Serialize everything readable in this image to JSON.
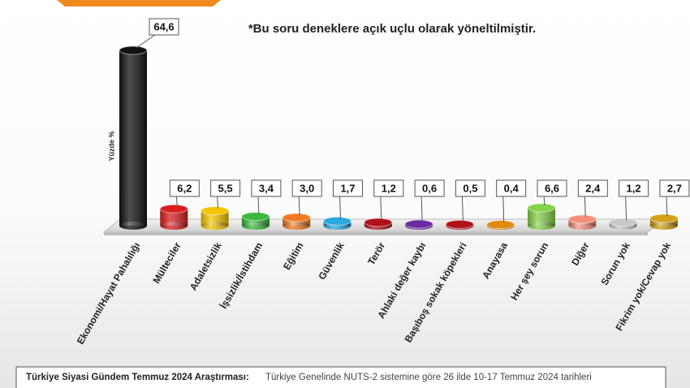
{
  "chart_data": {
    "type": "bar",
    "note": "*Bu soru deneklere açık uçlu olarak yöneltilmiştir.",
    "y_label": "Yüzde %",
    "categories": [
      "Ekonomi/Hayat Pahalılığı",
      "Mülteciler",
      "Adaletsizlik",
      "İşsizlik/İstihdam",
      "Eğitim",
      "Güvenlik",
      "Terör",
      "Ahlaki değer kaybı",
      "Başıboş sokak köpekleri",
      "Anayasa",
      "Her şey sorun",
      "Diğer",
      "Sorun yok",
      "Fikrim yok/Cevap yok"
    ],
    "values": [
      64.6,
      6.2,
      5.5,
      3.4,
      3.0,
      1.7,
      1.2,
      0.6,
      0.5,
      0.4,
      6.6,
      2.4,
      1.2,
      2.7
    ],
    "value_labels": [
      "64,6",
      "6,2",
      "5,5",
      "3,4",
      "3,0",
      "1,7",
      "1,2",
      "0,6",
      "0,5",
      "0,4",
      "6,6",
      "2,4",
      "1,2",
      "2,7"
    ],
    "colors": [
      "#111111",
      "#d81e1e",
      "#f5c400",
      "#3cb83c",
      "#f07a22",
      "#2aa9e0",
      "#b0121a",
      "#6a2aa0",
      "#b0121a",
      "#e08a10",
      "#86d24a",
      "#f4907a",
      "#c8c8c8",
      "#d4a017"
    ],
    "source_title": "Türkiye Siyasi Gündem Temmuz 2024 Araştırması:",
    "source_text": "Türkiye Genelinde NUTS-2 sistemine göre 26 ilde 10-17 Temmuz 2024 tarihleri"
  }
}
